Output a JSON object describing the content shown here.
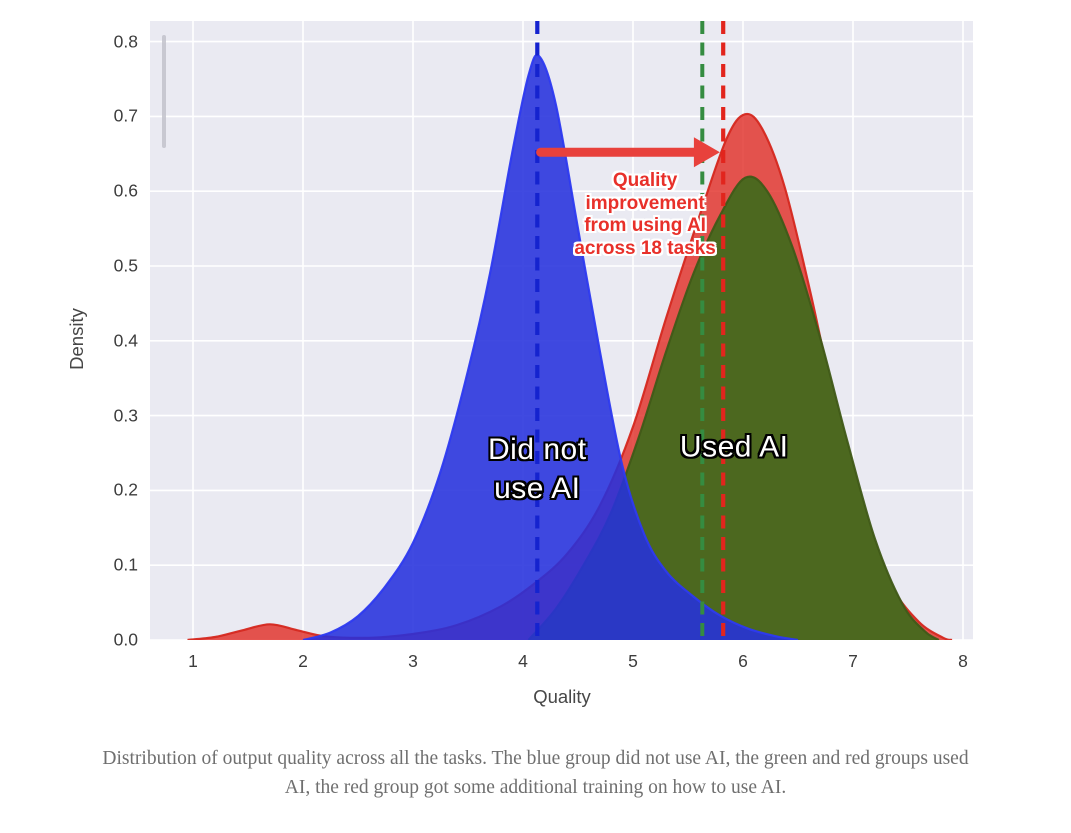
{
  "figure": {
    "background": "#ffffff",
    "plot_background": "#eaeaf2",
    "grid_color": "#ffffff"
  },
  "chart_data": {
    "type": "area",
    "subtype": "kde-density",
    "title": "",
    "xlabel": "Quality",
    "ylabel": "Density",
    "xlim": [
      0.609,
      8.091
    ],
    "ylim": [
      0,
      0.8276
    ],
    "grid": true,
    "legend_position": "none",
    "xticks": [
      {
        "v": 1,
        "label": "1"
      },
      {
        "v": 2,
        "label": "2"
      },
      {
        "v": 3,
        "label": "3"
      },
      {
        "v": 4,
        "label": "4"
      },
      {
        "v": 5,
        "label": "5"
      },
      {
        "v": 6,
        "label": "6"
      },
      {
        "v": 7,
        "label": "7"
      },
      {
        "v": 8,
        "label": "8"
      }
    ],
    "yticks": [
      {
        "v": 0.0,
        "label": "0.0"
      },
      {
        "v": 0.1,
        "label": "0.1"
      },
      {
        "v": 0.2,
        "label": "0.2"
      },
      {
        "v": 0.3,
        "label": "0.3"
      },
      {
        "v": 0.4,
        "label": "0.4"
      },
      {
        "v": 0.5,
        "label": "0.5"
      },
      {
        "v": 0.6,
        "label": "0.6"
      },
      {
        "v": 0.7,
        "label": "0.7"
      },
      {
        "v": 0.8,
        "label": "0.8"
      }
    ],
    "series": [
      {
        "name": "used-ai-with-training-red",
        "fill": "#e0271f",
        "fill_opacity": 0.78,
        "stroke": "#d5281f",
        "mean_x": 5.82,
        "mean_line_color": "#e2251d",
        "mean_line_width": 4.2,
        "peak": {
          "x": 6.0,
          "density": 0.7
        },
        "points": [
          [
            0.95,
            0
          ],
          [
            1.2,
            0.004
          ],
          [
            1.45,
            0.013
          ],
          [
            1.7,
            0.021
          ],
          [
            1.95,
            0.013
          ],
          [
            2.2,
            0.005
          ],
          [
            2.6,
            0.003
          ],
          [
            3.0,
            0.008
          ],
          [
            3.4,
            0.02
          ],
          [
            3.8,
            0.045
          ],
          [
            4.1,
            0.075
          ],
          [
            4.4,
            0.115
          ],
          [
            4.7,
            0.18
          ],
          [
            5.0,
            0.285
          ],
          [
            5.3,
            0.43
          ],
          [
            5.6,
            0.565
          ],
          [
            5.85,
            0.67
          ],
          [
            6.02,
            0.703
          ],
          [
            6.18,
            0.682
          ],
          [
            6.38,
            0.605
          ],
          [
            6.62,
            0.46
          ],
          [
            6.87,
            0.29
          ],
          [
            7.1,
            0.16
          ],
          [
            7.35,
            0.072
          ],
          [
            7.6,
            0.024
          ],
          [
            7.82,
            0.003
          ],
          [
            7.9,
            0
          ]
        ]
      },
      {
        "name": "used-ai-green",
        "fill": "#4c681f",
        "fill_opacity": 1.0,
        "stroke": "#405a18",
        "mean_x": 5.63,
        "mean_line_color": "#358c41",
        "mean_line_width": 4,
        "peak": {
          "x": 6.02,
          "density": 0.62
        },
        "points": [
          [
            4.05,
            0
          ],
          [
            4.3,
            0.042
          ],
          [
            4.55,
            0.1
          ],
          [
            4.8,
            0.17
          ],
          [
            5.05,
            0.27
          ],
          [
            5.3,
            0.385
          ],
          [
            5.55,
            0.49
          ],
          [
            5.8,
            0.57
          ],
          [
            6.02,
            0.618
          ],
          [
            6.22,
            0.6
          ],
          [
            6.45,
            0.525
          ],
          [
            6.7,
            0.405
          ],
          [
            6.95,
            0.265
          ],
          [
            7.2,
            0.135
          ],
          [
            7.45,
            0.048
          ],
          [
            7.65,
            0.012
          ],
          [
            7.78,
            0
          ]
        ]
      },
      {
        "name": "did-not-use-ai-blue",
        "fill": "#2531dd",
        "fill_opacity": 0.88,
        "stroke": "#2d3af0",
        "mean_x": 4.13,
        "mean_line_color": "#1523cf",
        "mean_line_width": 4.2,
        "peak": {
          "x": 4.13,
          "density": 0.78
        },
        "points": [
          [
            2.0,
            0
          ],
          [
            2.25,
            0.01
          ],
          [
            2.5,
            0.032
          ],
          [
            2.75,
            0.072
          ],
          [
            3.0,
            0.13
          ],
          [
            3.25,
            0.225
          ],
          [
            3.5,
            0.36
          ],
          [
            3.7,
            0.49
          ],
          [
            3.9,
            0.65
          ],
          [
            4.05,
            0.755
          ],
          [
            4.15,
            0.78
          ],
          [
            4.3,
            0.715
          ],
          [
            4.5,
            0.55
          ],
          [
            4.7,
            0.385
          ],
          [
            4.9,
            0.235
          ],
          [
            5.1,
            0.142
          ],
          [
            5.3,
            0.092
          ],
          [
            5.55,
            0.058
          ],
          [
            5.8,
            0.032
          ],
          [
            6.05,
            0.015
          ],
          [
            6.3,
            0.005
          ],
          [
            6.5,
            0
          ]
        ]
      }
    ],
    "annotations": {
      "arrow": {
        "from_x": 4.16,
        "to_x": 5.79,
        "y_density": 0.652,
        "color": "#e8413c"
      },
      "improvement_label": {
        "lines": [
          "Quality",
          "improvement",
          "from using AI",
          "across 18 tasks"
        ],
        "x": 5.11,
        "y_density": 0.568,
        "color": "#e8302a"
      },
      "group_labels": [
        {
          "id": "did-not-use-ai",
          "lines": [
            "Did not",
            "use AI"
          ],
          "x": 4.13,
          "y_density": 0.229
        },
        {
          "id": "used-ai",
          "lines": [
            "Used AI"
          ],
          "x": 5.92,
          "y_density": 0.258
        }
      ]
    }
  },
  "caption": {
    "text": "Distribution of output quality across all the tasks. The blue group did not use AI, the green and red groups used AI, the red group got some additional training on how to use AI."
  }
}
